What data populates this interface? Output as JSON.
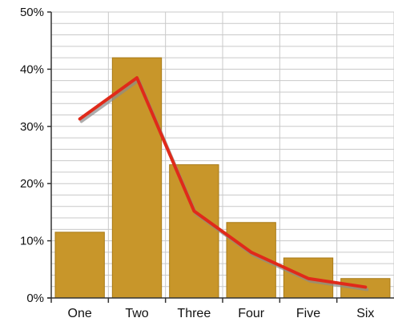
{
  "chart_data": {
    "type": "bar",
    "title": "",
    "xlabel": "",
    "ylabel": "",
    "categories": [
      "One",
      "Two",
      "Three",
      "Four",
      "Five",
      "Six"
    ],
    "series": [
      {
        "type": "bar",
        "values": [
          11.5,
          42,
          23.3,
          13.2,
          7,
          3.4
        ]
      },
      {
        "type": "line",
        "values": [
          31.3,
          38.5,
          15.2,
          8,
          3.4,
          1.9
        ]
      }
    ],
    "ylim": [
      0,
      50
    ],
    "y_ticks": [
      "0%",
      "10%",
      "20%",
      "30%",
      "40%",
      "50%"
    ],
    "y_minor_gridlines_per_major": 5,
    "grid": true,
    "legend": "none",
    "colors": {
      "bar": "#c8962a",
      "bar_edge": "#a87a18",
      "line": "#e02a1a",
      "line_shadow": "#8a8a8a",
      "grid": "#c9c9c9",
      "axis": "#333333"
    }
  }
}
